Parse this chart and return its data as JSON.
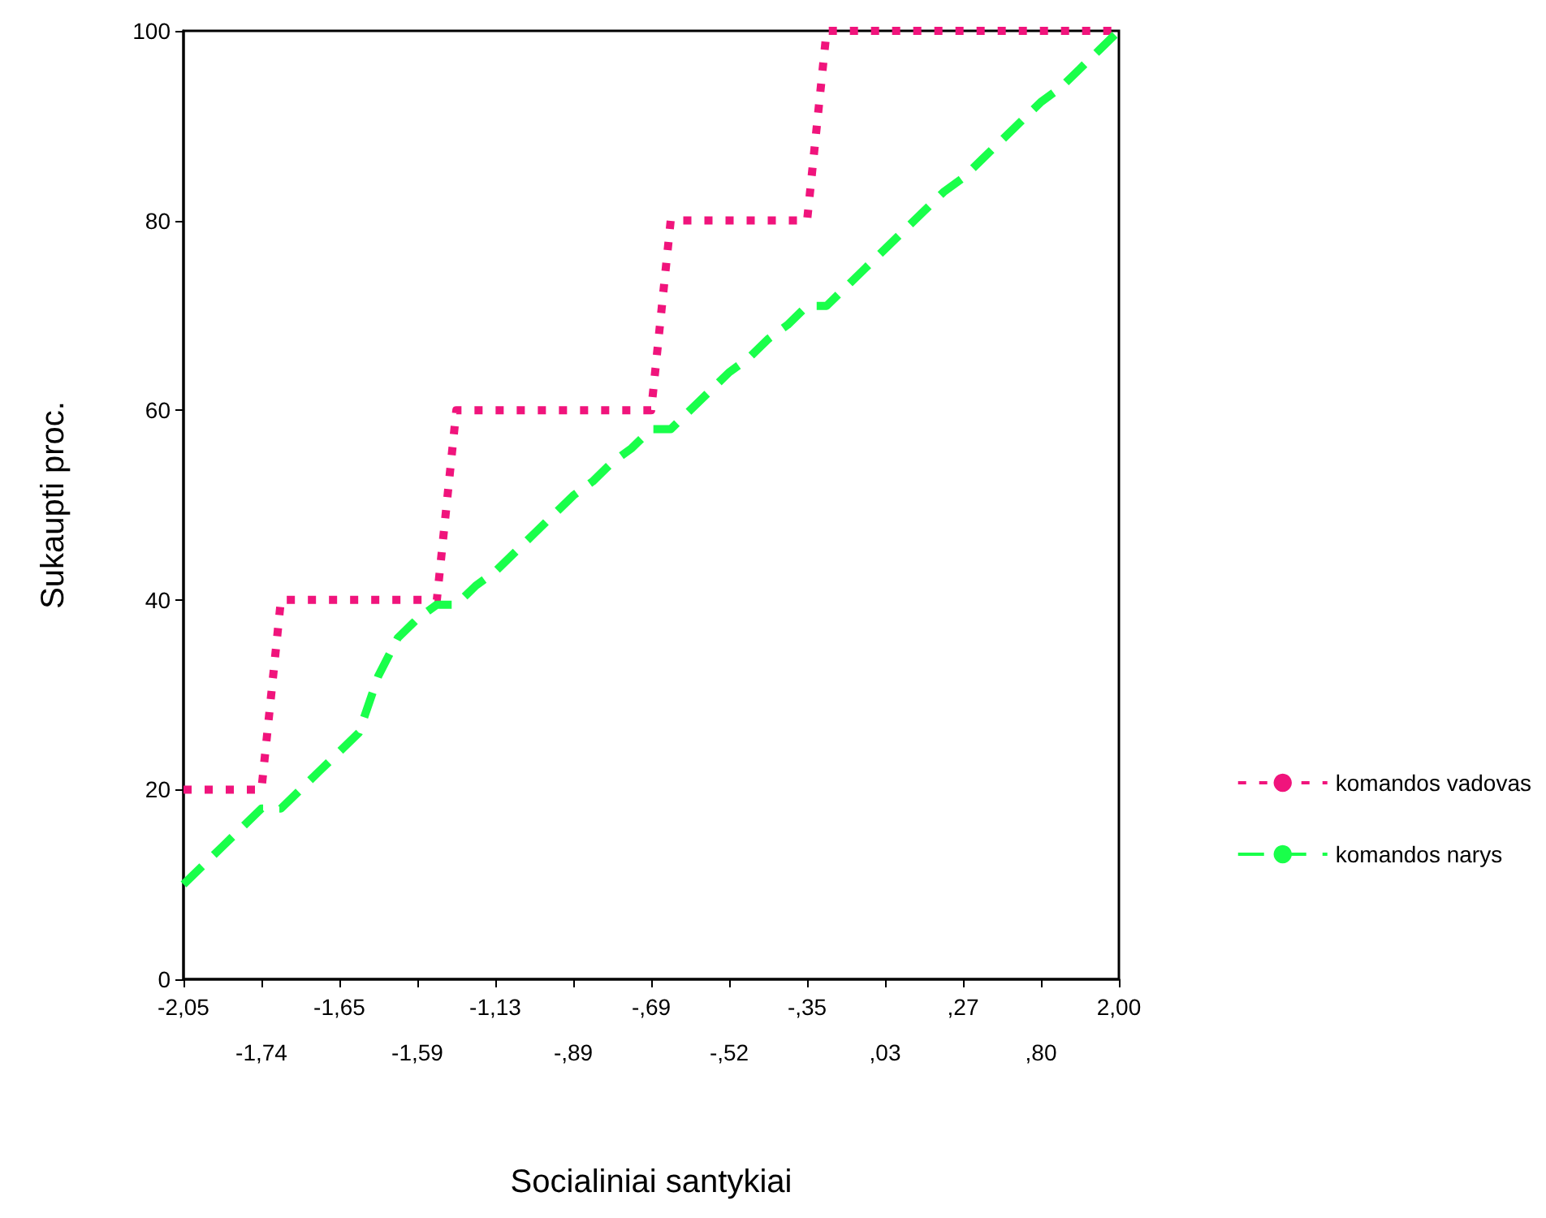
{
  "chart_data": {
    "type": "line",
    "xlabel": "Socialiniai santykiai",
    "ylabel": "Sukaupti proc.",
    "categories": [
      "-2,05",
      null,
      null,
      null,
      "-1,74",
      null,
      null,
      null,
      "-1,65",
      null,
      null,
      null,
      "-1,59",
      null,
      null,
      null,
      "-1,13",
      null,
      null,
      null,
      "-,89",
      null,
      null,
      null,
      "-,69",
      null,
      null,
      null,
      "-,52",
      null,
      null,
      null,
      "-,35",
      null,
      null,
      null,
      ",03",
      null,
      null,
      null,
      ",27",
      null,
      null,
      null,
      ",80",
      null,
      null,
      null,
      "2,00"
    ],
    "series": [
      {
        "name": "komandos vadovas",
        "color": "#f0147c",
        "line_style": "dotted",
        "values": [
          20,
          20,
          20,
          20,
          20,
          40,
          40,
          40,
          40,
          40,
          40,
          40,
          40,
          40,
          60,
          60,
          60,
          60,
          60,
          60,
          60,
          60,
          60,
          60,
          60,
          80,
          80,
          80,
          80,
          80,
          80,
          80,
          80,
          100,
          100,
          100,
          100,
          100,
          100,
          100,
          100,
          100,
          100,
          100,
          100,
          100,
          100,
          100,
          100
        ]
      },
      {
        "name": "komandos narys",
        "color": "#19ff4a",
        "line_style": "dashed",
        "values": [
          10,
          12,
          14,
          16,
          18,
          18,
          20,
          22,
          24,
          26,
          32,
          36,
          38,
          39.5,
          39.5,
          41.5,
          43,
          45,
          47,
          49,
          51,
          52.5,
          54.5,
          56,
          58,
          58,
          60,
          62,
          64,
          65.5,
          67.5,
          69,
          71,
          71,
          73,
          75,
          77,
          79,
          81,
          83,
          84.5,
          86.5,
          88.5,
          90.5,
          92.5,
          94,
          96,
          98,
          100
        ]
      }
    ],
    "ylim": [
      0,
      100
    ],
    "yticks": [
      0,
      20,
      40,
      60,
      80,
      100
    ],
    "grid": false,
    "legend": "right",
    "marker": "none"
  }
}
